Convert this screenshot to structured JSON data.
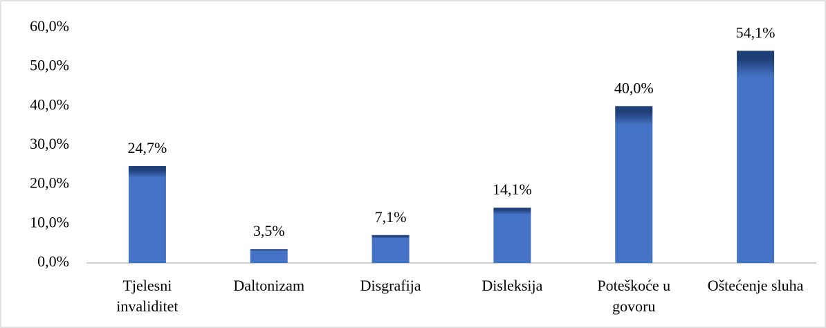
{
  "chart_data": {
    "type": "bar",
    "categories": [
      "Tjelesni invaliditet",
      "Daltonizam",
      "Disgrafija",
      "Disleksija",
      "Poteškoće u govoru",
      "Oštećenje sluha"
    ],
    "values": [
      24.7,
      3.5,
      7.1,
      14.1,
      40.0,
      54.1
    ],
    "value_labels": [
      "24,7%",
      "3,5%",
      "7,1%",
      "14,1%",
      "40,0%",
      "54,1%"
    ],
    "color": "#4472c4",
    "ylim": [
      0,
      60
    ],
    "yticks": [
      {
        "value": 0,
        "label": "0,0%"
      },
      {
        "value": 10,
        "label": "10,0%"
      },
      {
        "value": 20,
        "label": "20,0%"
      },
      {
        "value": 30,
        "label": "30,0%"
      },
      {
        "value": 40,
        "label": "40,0%"
      },
      {
        "value": 50,
        "label": "50,0%"
      },
      {
        "value": 60,
        "label": "60,0%"
      }
    ],
    "grid": false
  }
}
